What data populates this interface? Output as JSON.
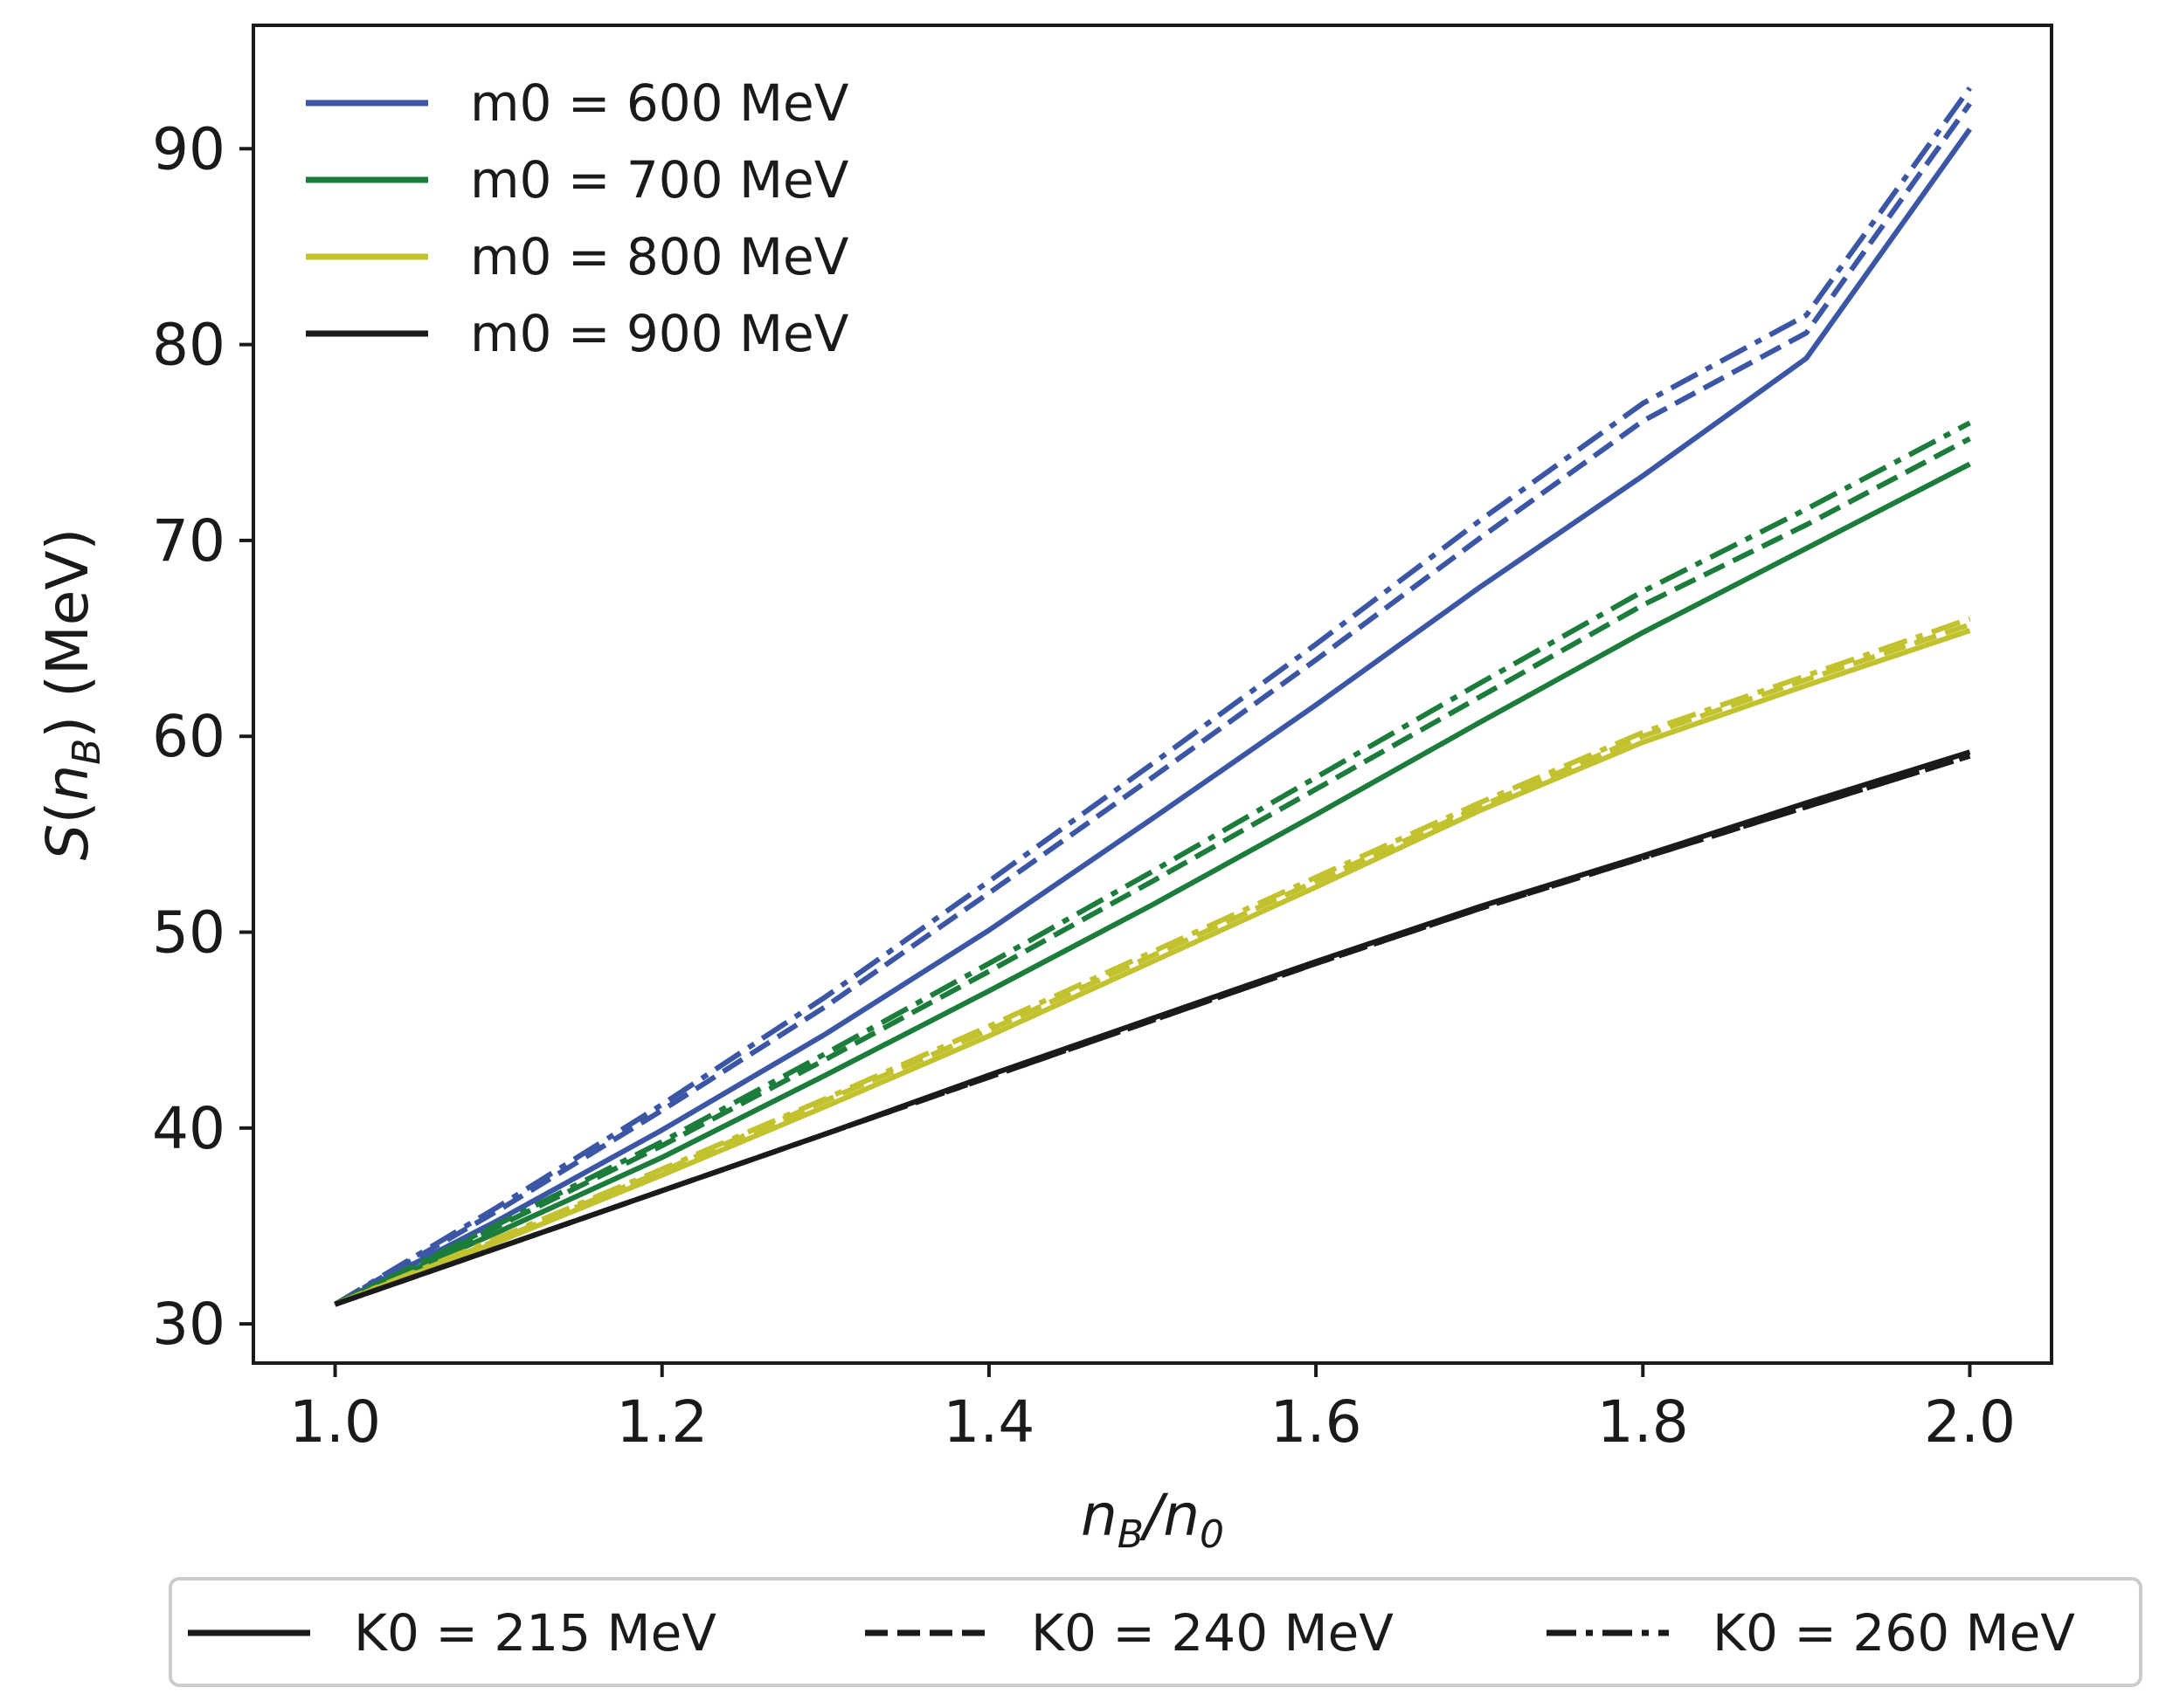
{
  "chart_data": {
    "type": "line",
    "title": "",
    "xlabel": "n_B/n_0",
    "ylabel": "S(n_B) (MeV)",
    "xlim": [
      0.95,
      2.05
    ],
    "ylim": [
      28,
      96.3
    ],
    "xticks": [
      1.0,
      1.2,
      1.4,
      1.6,
      1.8,
      2.0
    ],
    "xtick_labels": [
      "1.0",
      "1.2",
      "1.4",
      "1.6",
      "1.8",
      "2.0"
    ],
    "yticks": [
      30,
      40,
      50,
      60,
      70,
      80,
      90
    ],
    "ytick_labels": [
      "30",
      "40",
      "50",
      "60",
      "70",
      "80",
      "90"
    ],
    "grid": false,
    "x": [
      1.0,
      1.1,
      1.2,
      1.3,
      1.4,
      1.5,
      1.6,
      1.7,
      1.8,
      1.9,
      2.0
    ],
    "series": [
      {
        "name": "m0 = 600 MeV, K0 = 215 MeV",
        "color": "#3a56a5",
        "style": "solid",
        "values": [
          31.0,
          35.3,
          39.9,
          44.8,
          50.1,
          55.8,
          61.6,
          67.6,
          73.3,
          79.3,
          91.0
        ]
      },
      {
        "name": "m0 = 600 MeV, K0 = 240 MeV",
        "color": "#3a56a5",
        "style": "dashed",
        "values": [
          31.0,
          35.8,
          40.9,
          46.2,
          52.0,
          57.9,
          63.9,
          70.1,
          76.1,
          80.6,
          92.3
        ]
      },
      {
        "name": "m0 = 600 MeV, K0 = 260 MeV",
        "color": "#3a56a5",
        "style": "dashdot",
        "values": [
          31.0,
          36.0,
          41.2,
          46.7,
          52.6,
          58.6,
          64.7,
          71.0,
          77.0,
          81.5,
          93.1
        ]
      },
      {
        "name": "m0 = 700 MeV, K0 = 215 MeV",
        "color": "#1c7c3b",
        "style": "solid",
        "values": [
          31.0,
          34.7,
          38.5,
          42.7,
          47.0,
          51.4,
          56.0,
          60.7,
          65.3,
          69.6,
          73.9
        ]
      },
      {
        "name": "m0 = 700 MeV, K0 = 240 MeV",
        "color": "#1c7c3b",
        "style": "dashed",
        "values": [
          31.0,
          35.0,
          39.1,
          43.5,
          48.0,
          52.6,
          57.3,
          62.0,
          66.7,
          70.8,
          75.2
        ]
      },
      {
        "name": "m0 = 700 MeV, K0 = 260 MeV",
        "color": "#1c7c3b",
        "style": "dashdot",
        "values": [
          31.0,
          35.1,
          39.3,
          43.8,
          48.4,
          53.1,
          57.9,
          62.7,
          67.4,
          71.6,
          76.0
        ]
      },
      {
        "name": "m0 = 800 MeV, K0 = 215 MeV",
        "color": "#c2c22e",
        "style": "solid",
        "values": [
          31.0,
          34.2,
          37.6,
          41.1,
          44.7,
          48.5,
          52.3,
          56.2,
          59.7,
          62.6,
          65.4
        ]
      },
      {
        "name": "m0 = 800 MeV, K0 = 240 MeV",
        "color": "#c2c22e",
        "style": "dashed",
        "values": [
          31.0,
          34.3,
          37.8,
          41.4,
          45.0,
          48.8,
          52.6,
          56.4,
          60.0,
          62.9,
          65.7
        ]
      },
      {
        "name": "m0 = 800 MeV, K0 = 260 MeV",
        "color": "#c2c22e",
        "style": "dashdot",
        "values": [
          31.0,
          34.4,
          37.9,
          41.5,
          45.2,
          49.0,
          52.8,
          56.6,
          60.2,
          63.1,
          66.0
        ]
      },
      {
        "name": "m0 = 900 MeV, K0 = 215 MeV",
        "color": "#1a1a1a",
        "style": "solid",
        "values": [
          31.0,
          33.9,
          36.8,
          39.7,
          42.7,
          45.6,
          48.5,
          51.3,
          53.9,
          56.6,
          59.2
        ]
      },
      {
        "name": "m0 = 900 MeV, K0 = 240 MeV",
        "color": "#1a1a1a",
        "style": "dashed",
        "values": [
          31.0,
          33.9,
          36.8,
          39.7,
          42.6,
          45.5,
          48.4,
          51.2,
          53.8,
          56.4,
          59.0
        ]
      },
      {
        "name": "m0 = 900 MeV, K0 = 260 MeV",
        "color": "#1a1a1a",
        "style": "dashdot",
        "values": [
          31.0,
          33.9,
          36.8,
          39.7,
          42.6,
          45.5,
          48.4,
          51.2,
          53.8,
          56.4,
          59.0
        ]
      }
    ],
    "legend_mass": {
      "placement": "top-left",
      "entries": [
        {
          "label": "m0 = 600 MeV",
          "color": "#3a56a5"
        },
        {
          "label": "m0 = 700 MeV",
          "color": "#1c7c3b"
        },
        {
          "label": "m0 = 800 MeV",
          "color": "#c2c22e"
        },
        {
          "label": "m0 = 900 MeV",
          "color": "#1a1a1a"
        }
      ]
    },
    "legend_K0": {
      "placement": "bottom, outside",
      "entries": [
        {
          "label": "K0 = 215 MeV",
          "style": "solid"
        },
        {
          "label": "K0 = 240 MeV",
          "style": "dashed"
        },
        {
          "label": "K0 = 260 MeV",
          "style": "dashdot"
        }
      ]
    }
  }
}
